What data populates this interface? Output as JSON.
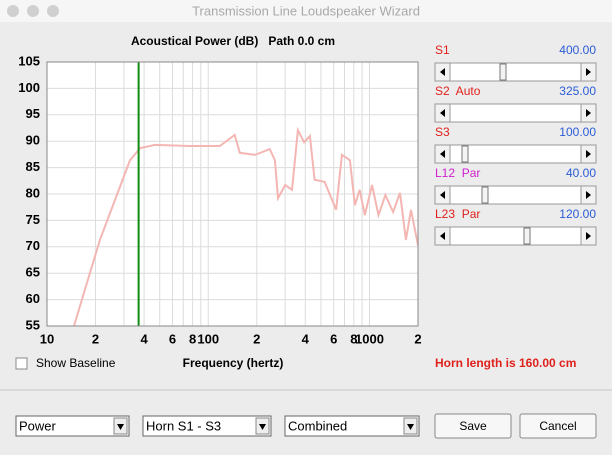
{
  "window": {
    "title": "Transmission Line Loudspeaker Wizard"
  },
  "chart_data": {
    "type": "line",
    "title": "Acoustical Power (dB)   Path 0.0 cm",
    "x_label": "Frequency (hertz)",
    "x": [
      14.7,
      21.3,
      32.7,
      37.8,
      46.7,
      77,
      118,
      146,
      157,
      195,
      241,
      259,
      271,
      300,
      331,
      360,
      393,
      427,
      457,
      527,
      621,
      675,
      756,
      812,
      870,
      935,
      1037,
      1138,
      1256,
      1402,
      1547,
      1683,
      1810,
      2000
    ],
    "values": [
      55,
      71.3,
      86.4,
      88.7,
      89.3,
      89.1,
      89.1,
      91.2,
      87.8,
      87.4,
      88.5,
      86.4,
      79.2,
      81.7,
      80.8,
      92.1,
      89.8,
      91.0,
      82.7,
      82.3,
      77,
      87.4,
      86.4,
      77.9,
      80.8,
      76,
      81.7,
      76,
      79.8,
      76.6,
      80.2,
      71.3,
      77,
      70.3
    ],
    "color": "#f3b6b3",
    "xlog": true,
    "xlim": [
      10,
      2000
    ],
    "ylim": [
      55,
      105
    ],
    "yticks": [
      55,
      60,
      65,
      70,
      75,
      80,
      85,
      90,
      95,
      100,
      105
    ],
    "xticks": [
      10,
      {
        "value": 20,
        "label": "2"
      },
      {
        "value": 40,
        "label": "4"
      },
      {
        "value": 60,
        "label": "6"
      },
      {
        "value": 80,
        "label": "8"
      },
      100,
      {
        "value": 200,
        "label": "2"
      },
      {
        "value": 400,
        "label": "4"
      },
      {
        "value": 600,
        "label": "6"
      },
      {
        "value": 800,
        "label": "8"
      },
      1000,
      {
        "value": 2000,
        "label": "2"
      }
    ],
    "xgrid": [
      30,
      50,
      70,
      90,
      300,
      500,
      700,
      900
    ],
    "grid": true,
    "cursor_x": 37,
    "cursor_color": "#138a13"
  },
  "sliders": [
    {
      "label": "S1",
      "label_color": "#e0201c",
      "value": "400.00"
    },
    {
      "label": "S2  Auto",
      "label_color": "#e0201c",
      "value": "325.00"
    },
    {
      "label": "S3",
      "label_color": "#e0201c",
      "value": "100.00"
    },
    {
      "label": "L12  Par",
      "label_color": "#d020d0",
      "value": "40.00"
    },
    {
      "label": "L23  Par",
      "label_color": "#e0201c",
      "value": "120.00"
    }
  ],
  "checkbox": "Show Baseline",
  "status": "Horn length is 160.00 cm",
  "selects": [
    "Power",
    "Horn S1 - S3",
    "Combined"
  ],
  "buttons": [
    "Save",
    "Cancel"
  ]
}
